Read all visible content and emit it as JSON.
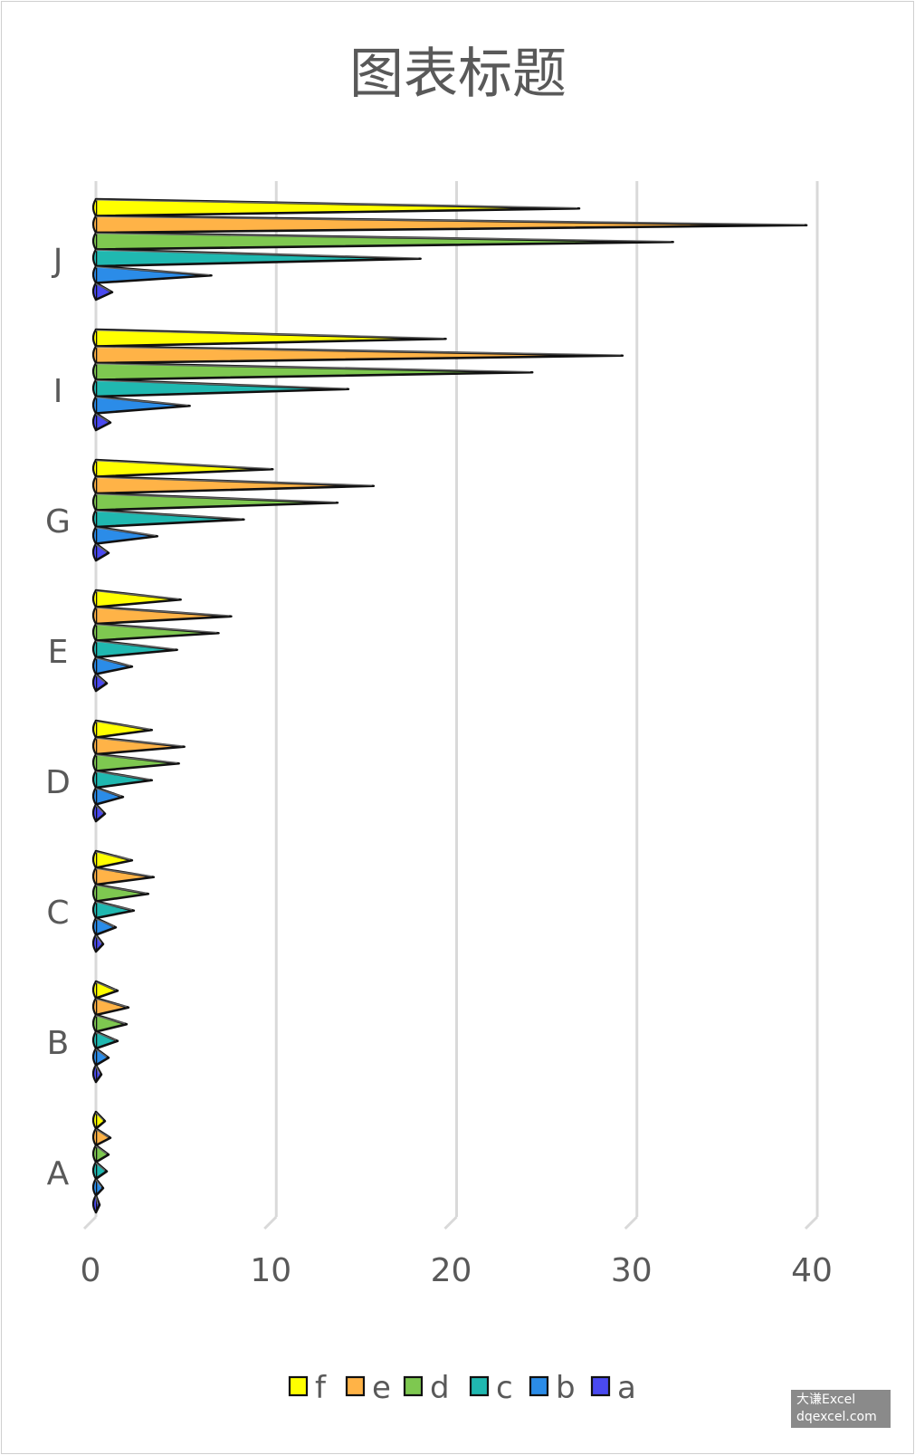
{
  "chart_data": {
    "type": "bar",
    "orientation": "horizontal",
    "title": "图表标题",
    "categories": [
      "A",
      "B",
      "C",
      "D",
      "E",
      "G",
      "I",
      "J"
    ],
    "series": [
      {
        "name": "f",
        "color": "#ffff00",
        "values": [
          0.5,
          1.2,
          2.0,
          3.1,
          4.7,
          9.8,
          19.4,
          26.8
        ]
      },
      {
        "name": "e",
        "color": "#ffb347",
        "values": [
          0.8,
          1.8,
          3.2,
          4.9,
          7.5,
          15.4,
          29.2,
          39.4
        ]
      },
      {
        "name": "d",
        "color": "#7ec850",
        "values": [
          0.7,
          1.7,
          2.9,
          4.6,
          6.8,
          13.4,
          24.2,
          32.0
        ]
      },
      {
        "name": "c",
        "color": "#20b8b0",
        "values": [
          0.6,
          1.2,
          2.1,
          3.1,
          4.5,
          8.2,
          14.0,
          18.0
        ]
      },
      {
        "name": "b",
        "color": "#2b8ce8",
        "values": [
          0.4,
          0.7,
          1.1,
          1.5,
          2.0,
          3.4,
          5.2,
          6.4
        ]
      },
      {
        "name": "a",
        "color": "#4a4af0",
        "values": [
          0.2,
          0.3,
          0.4,
          0.5,
          0.6,
          0.7,
          0.8,
          0.9
        ]
      }
    ],
    "x_ticks": [
      "0",
      "10",
      "20",
      "30",
      "40"
    ],
    "xlim": [
      0,
      40
    ],
    "grid": true,
    "legend_position": "bottom"
  },
  "watermark": {
    "line1": "大谦Excel",
    "line2": "dqexcel.com"
  }
}
